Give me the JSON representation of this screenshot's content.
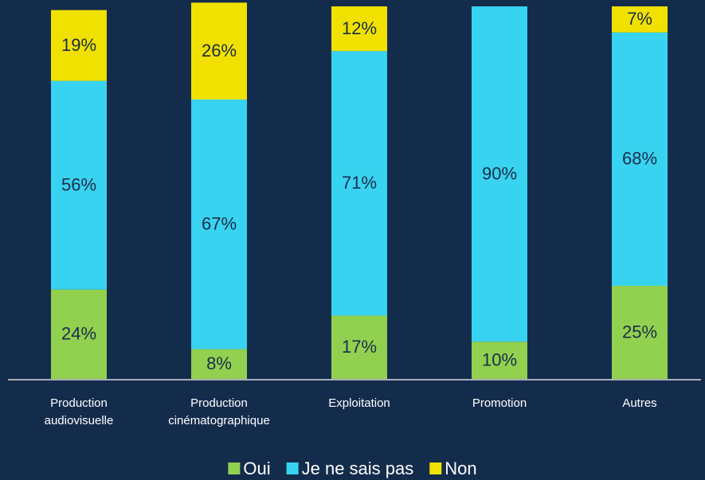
{
  "chart_data": {
    "type": "stacked_bar",
    "categories": [
      "Production audiovisuelle",
      "Production cinématographique",
      "Exploitation",
      "Promotion",
      "Autres"
    ],
    "series": [
      {
        "name": "Oui",
        "color": "#92d050",
        "values": [
          24,
          8,
          17,
          10,
          25
        ]
      },
      {
        "name": "Je ne sais pas",
        "color": "#38d3f0",
        "values": [
          56,
          67,
          71,
          90,
          68
        ]
      },
      {
        "name": "Non",
        "color": "#f0e100",
        "values": [
          19,
          26,
          12,
          null,
          7
        ]
      }
    ],
    "value_labels": [
      [
        "24%",
        "8%",
        "17%",
        "10%",
        "25%"
      ],
      [
        "56%",
        "67%",
        "71%",
        "90%",
        "68%"
      ],
      [
        "19%",
        "26%",
        "12%",
        null,
        "7%"
      ]
    ],
    "ylim": [
      0,
      100
    ],
    "legend": "bottom"
  }
}
